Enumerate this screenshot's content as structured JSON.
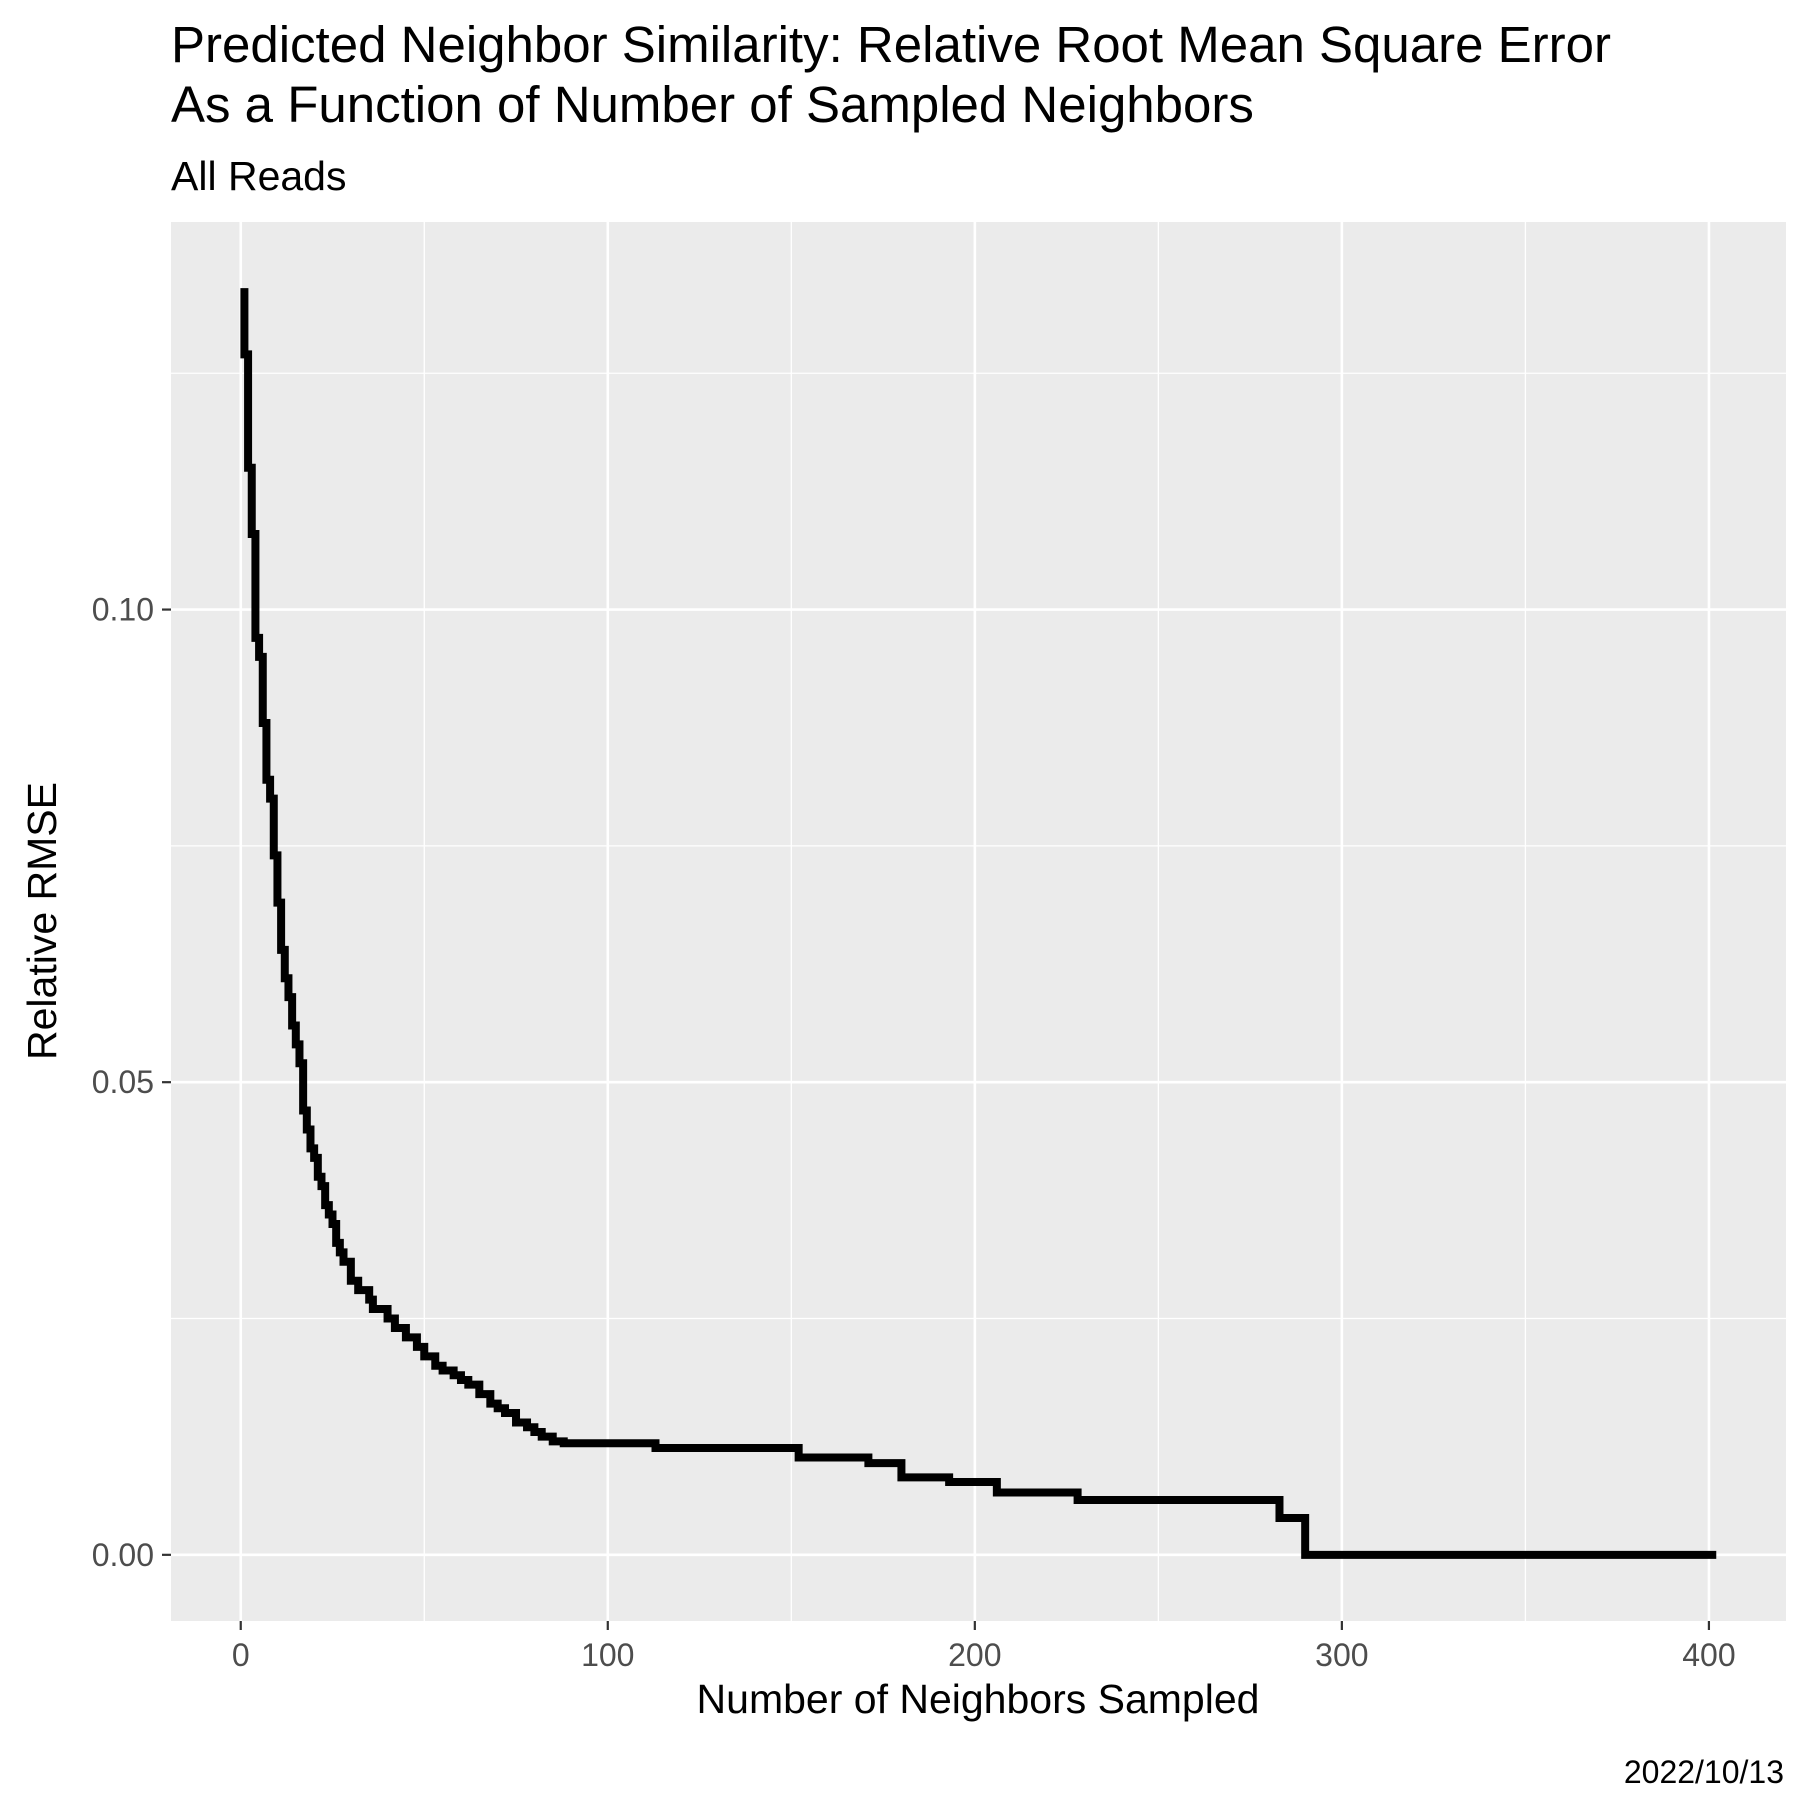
{
  "chart_data": {
    "type": "line",
    "title_line1": "Predicted Neighbor Similarity: Relative Root Mean Square Error",
    "title_line2": "As a Function of Number of Sampled Neighbors",
    "subtitle": "All Reads",
    "xlabel": "Number of Neighbors Sampled",
    "ylabel": "Relative RMSE",
    "caption": "2022/10/13",
    "xlim": [
      -19,
      421
    ],
    "ylim": [
      -0.007,
      0.141
    ],
    "x_ticks": [
      0,
      100,
      200,
      300,
      400
    ],
    "x_tick_labels": [
      "0",
      "100",
      "200",
      "300",
      "400"
    ],
    "x_minor_ticks": [
      50,
      150,
      250,
      350
    ],
    "y_ticks": [
      0.0,
      0.05,
      0.1
    ],
    "y_tick_labels": [
      "0.00",
      "0.05",
      "0.10"
    ],
    "y_minor_ticks": [
      0.025,
      0.075,
      0.125
    ],
    "grid": true,
    "colors": {
      "panel_background": "#ebebeb",
      "grid_line": "#ffffff",
      "line": "#000000",
      "tick_mark": "#333333"
    },
    "series": [
      {
        "x": [
          1,
          1,
          2,
          2,
          3,
          3,
          4,
          4,
          5,
          5,
          6,
          6,
          7,
          7,
          8,
          8,
          9,
          9,
          10,
          10,
          11,
          11,
          12,
          12,
          13,
          13,
          14,
          14,
          15,
          15,
          16,
          16,
          17,
          17,
          18,
          18,
          19,
          19,
          20,
          20,
          21,
          21,
          22,
          22,
          23,
          23,
          24,
          24,
          25,
          25,
          26,
          26,
          27,
          27,
          28,
          28,
          30,
          30,
          32,
          32,
          35,
          35,
          36,
          36,
          40,
          40,
          42,
          42,
          45,
          45,
          48,
          48,
          50,
          50,
          53,
          53,
          55,
          55,
          58,
          58,
          60,
          60,
          62,
          62,
          65,
          65,
          68,
          68,
          70,
          70,
          72,
          72,
          75,
          75,
          78,
          78,
          80,
          80,
          82,
          82,
          85,
          85,
          88,
          88,
          113,
          113,
          152,
          152,
          171,
          171,
          180,
          180,
          193,
          193,
          206,
          206,
          228,
          228,
          283,
          283,
          290,
          290,
          402
        ],
        "y": [
          0.134,
          0.127,
          0.127,
          0.115,
          0.115,
          0.108,
          0.108,
          0.097,
          0.097,
          0.095,
          0.095,
          0.088,
          0.088,
          0.082,
          0.082,
          0.08,
          0.08,
          0.074,
          0.074,
          0.069,
          0.069,
          0.064,
          0.064,
          0.061,
          0.061,
          0.059,
          0.059,
          0.056,
          0.056,
          0.054,
          0.054,
          0.052,
          0.052,
          0.047,
          0.047,
          0.045,
          0.045,
          0.043,
          0.043,
          0.042,
          0.042,
          0.04,
          0.04,
          0.039,
          0.039,
          0.037,
          0.037,
          0.036,
          0.036,
          0.035,
          0.035,
          0.033,
          0.033,
          0.032,
          0.032,
          0.031,
          0.031,
          0.029,
          0.029,
          0.028,
          0.028,
          0.027,
          0.027,
          0.026,
          0.026,
          0.025,
          0.025,
          0.024,
          0.024,
          0.023,
          0.023,
          0.022,
          0.022,
          0.021,
          0.021,
          0.02,
          0.02,
          0.0195,
          0.0195,
          0.019,
          0.019,
          0.0185,
          0.0185,
          0.018,
          0.018,
          0.017,
          0.017,
          0.016,
          0.016,
          0.0155,
          0.0155,
          0.015,
          0.015,
          0.014,
          0.014,
          0.0135,
          0.0135,
          0.013,
          0.013,
          0.0125,
          0.0125,
          0.012,
          0.012,
          0.0118,
          0.0118,
          0.0113,
          0.0113,
          0.0103,
          0.0103,
          0.0097,
          0.0097,
          0.0082,
          0.0082,
          0.0077,
          0.0077,
          0.0066,
          0.0066,
          0.0058,
          0.0058,
          0.0039,
          0.0039,
          0.0,
          0.0
        ]
      }
    ]
  }
}
